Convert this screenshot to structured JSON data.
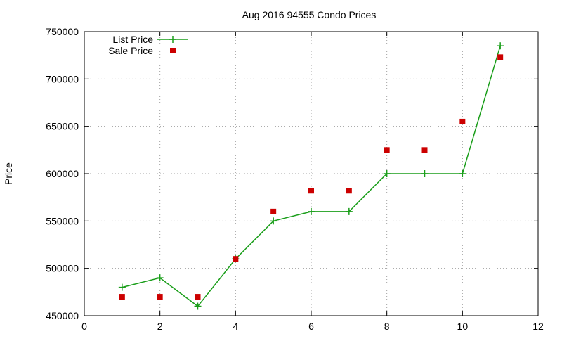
{
  "chart_data": {
    "type": "line",
    "title": "Aug 2016 94555 Condo Prices",
    "xlabel": "",
    "ylabel": "Price",
    "xlim": [
      0,
      12
    ],
    "ylim": [
      450000,
      750000
    ],
    "x_ticks": [
      0,
      2,
      4,
      6,
      8,
      10,
      12
    ],
    "y_ticks": [
      450000,
      500000,
      550000,
      600000,
      650000,
      700000,
      750000
    ],
    "grid": true,
    "legend_position": "top-left",
    "series": [
      {
        "name": "List Price",
        "style": "line-with-plus-markers",
        "color": "#1a9e1a",
        "x": [
          1,
          2,
          3,
          4,
          5,
          6,
          7,
          8,
          9,
          10,
          11
        ],
        "y": [
          480000,
          490000,
          460000,
          510000,
          550000,
          560000,
          560000,
          600000,
          600000,
          600000,
          735000
        ]
      },
      {
        "name": "Sale Price",
        "style": "square-markers",
        "color": "#cc0000",
        "x": [
          1,
          2,
          3,
          4,
          5,
          6,
          7,
          8,
          9,
          10,
          11
        ],
        "y": [
          470000,
          470000,
          470000,
          510000,
          560000,
          582000,
          582000,
          625000,
          625000,
          655000,
          723000
        ]
      }
    ]
  }
}
